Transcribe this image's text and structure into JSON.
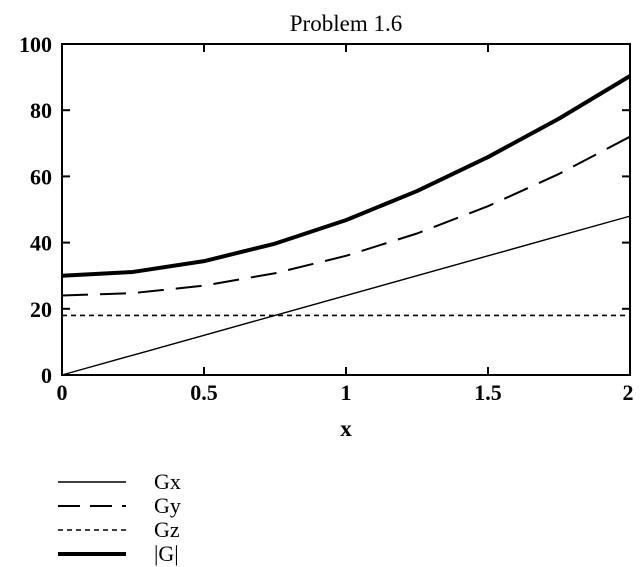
{
  "chart_data": {
    "type": "line",
    "title": "Problem 1.6",
    "xlabel": "x",
    "ylabel": "",
    "xlim": [
      0,
      2
    ],
    "ylim": [
      0,
      100
    ],
    "x_ticks": [
      0,
      0.5,
      1,
      1.5,
      2
    ],
    "x_tick_labels": [
      "0",
      "0.5",
      "1",
      "1.5",
      "2"
    ],
    "y_ticks": [
      0,
      20,
      40,
      60,
      80,
      100
    ],
    "y_tick_labels": [
      "0",
      "20",
      "40",
      "60",
      "80",
      "100"
    ],
    "grid": false,
    "legend_position": "bottom-left",
    "x": [
      0,
      0.25,
      0.5,
      0.75,
      1,
      1.25,
      1.5,
      1.75,
      2
    ],
    "series": [
      {
        "name": "Gx",
        "style": "thin-solid",
        "values": [
          0,
          6,
          12,
          18,
          24,
          30,
          36,
          42,
          48
        ]
      },
      {
        "name": "Gy",
        "style": "long-dash",
        "values": [
          24,
          24.75,
          27,
          30.75,
          36,
          42.75,
          51,
          60.75,
          72
        ]
      },
      {
        "name": "Gz",
        "style": "short-dash",
        "values": [
          18,
          18,
          18,
          18,
          18,
          18,
          18,
          18,
          18
        ]
      },
      {
        "name": "|G|",
        "style": "thick-solid",
        "values": [
          30,
          31.13,
          34.4,
          39.68,
          46.8,
          55.57,
          65.84,
          77.46,
          90.33
        ]
      }
    ],
    "colors": {
      "line": "#000000",
      "background": "#ffffff"
    }
  }
}
